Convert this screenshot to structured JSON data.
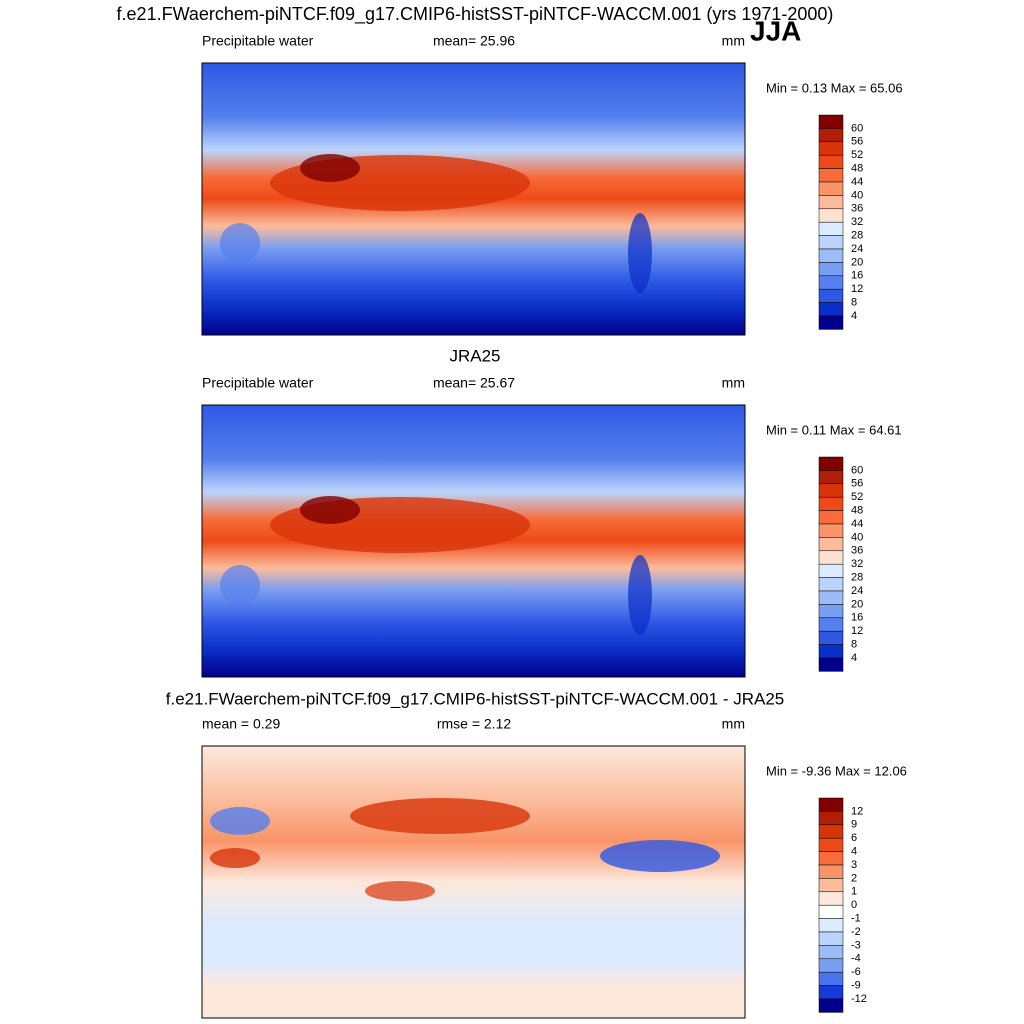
{
  "title": "f.e21.FWaerchem-piNTCF.f09_g17.CMIP6-histSST-piNTCF-WACCM.001 (yrs 1971-2000)",
  "season": "JJA",
  "panels": [
    {
      "title": null,
      "left": "Precipitable water",
      "center": "mean=  25.96",
      "units": "mm",
      "minmax": "Min =   0.13 Max =  65.06",
      "colorbar_labels": [
        60,
        56,
        52,
        48,
        44,
        40,
        36,
        32,
        28,
        24,
        20,
        16,
        12,
        8,
        4
      ],
      "colors": [
        "#800000",
        "#b01e08",
        "#d8340a",
        "#ee4a18",
        "#f76c3a",
        "#f99468",
        "#fbbc9c",
        "#fde2d2",
        "#dcebff",
        "#bcd4fb",
        "#9cbcf6",
        "#7a9ef2",
        "#5580ee",
        "#2e58e4",
        "#0a2ec8",
        "#00008c"
      ]
    },
    {
      "title": "JRA25",
      "left": "Precipitable water",
      "center": "mean=  25.67",
      "units": "mm",
      "minmax": "Min =   0.11 Max =  64.61",
      "colorbar_labels": [
        60,
        56,
        52,
        48,
        44,
        40,
        36,
        32,
        28,
        24,
        20,
        16,
        12,
        8,
        4
      ],
      "colors": [
        "#800000",
        "#b01e08",
        "#d8340a",
        "#ee4a18",
        "#f76c3a",
        "#f99468",
        "#fbbc9c",
        "#fde2d2",
        "#dcebff",
        "#bcd4fb",
        "#9cbcf6",
        "#7a9ef2",
        "#5580ee",
        "#2e58e4",
        "#0a2ec8",
        "#00008c"
      ]
    },
    {
      "title": "f.e21.FWaerchem-piNTCF.f09_g17.CMIP6-histSST-piNTCF-WACCM.001 - JRA25",
      "left": "mean =   0.29",
      "center": "rmse =   2.12",
      "units": "mm",
      "minmax": "Min =  -9.36 Max =  12.06",
      "colorbar_labels": [
        12,
        9,
        6,
        4,
        3,
        2,
        1,
        0,
        -1,
        -2,
        -3,
        -4,
        -6,
        -9,
        -12
      ],
      "colors": [
        "#800000",
        "#b01e08",
        "#d8340a",
        "#ee4a18",
        "#f76c3a",
        "#f99468",
        "#fbbc9c",
        "#fde8dc",
        "#ffffff",
        "#dcebff",
        "#bcd4fb",
        "#9cbcf6",
        "#7a9ef2",
        "#4a74ec",
        "#1838d8",
        "#00008c"
      ]
    }
  ]
}
